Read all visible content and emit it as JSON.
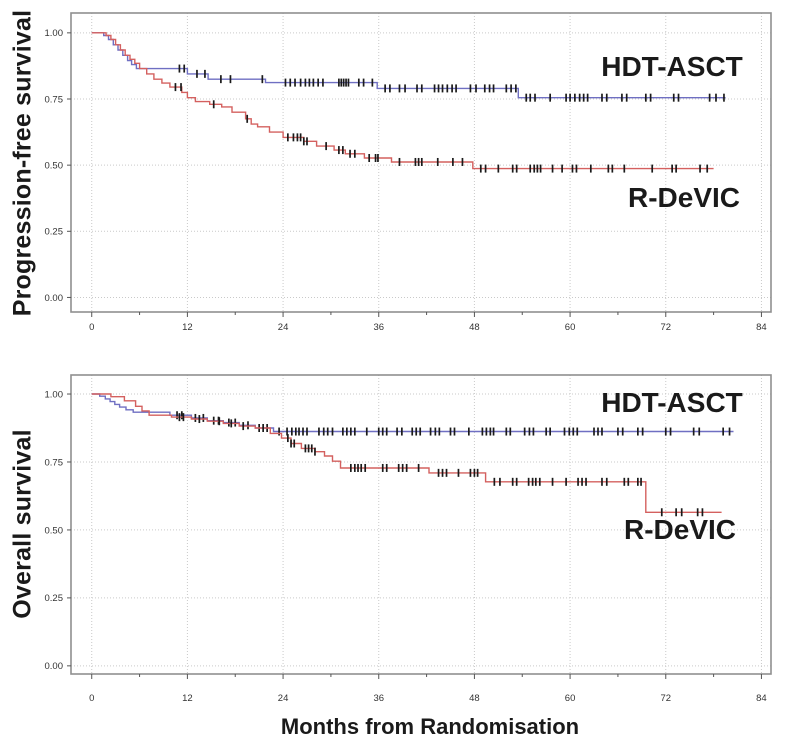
{
  "figure": {
    "background_color": "#ffffff",
    "grid_color": "#c9c9c9",
    "box_color": "#8f8f8f",
    "censor_color": "#1a1a1a",
    "tick_label_color": "#333333"
  },
  "chart_data": [
    {
      "type": "line",
      "subtype": "kaplan-meier-step",
      "title": "",
      "ylabel": "Progression-free survival",
      "xlabel": "",
      "xlim": [
        -2.6,
        85.2
      ],
      "ylim": [
        -0.055,
        1.075
      ],
      "xticks": [
        0,
        12,
        24,
        36,
        48,
        60,
        72,
        84
      ],
      "xminor": [
        6,
        18,
        30,
        42,
        54,
        66,
        78
      ],
      "yticks": [
        0.0,
        0.25,
        0.5,
        0.75,
        1.0
      ],
      "ytick_labels": [
        "0.00",
        "0.25",
        "0.50",
        "0.75",
        "1.00"
      ],
      "grid": true,
      "legend_position": "annotations-on-plot",
      "series": [
        {
          "name": "HDT-ASCT",
          "color": "#6f6fc2",
          "end_x": 79.5,
          "steps": [
            [
              0,
              1.0
            ],
            [
              1.5,
              0.99
            ],
            [
              2.1,
              0.975
            ],
            [
              2.7,
              0.955
            ],
            [
              3.3,
              0.935
            ],
            [
              3.9,
              0.915
            ],
            [
              4.5,
              0.895
            ],
            [
              5.0,
              0.88
            ],
            [
              5.6,
              0.865
            ],
            [
              12.0,
              0.845
            ],
            [
              14.6,
              0.825
            ],
            [
              21.8,
              0.812
            ],
            [
              35.8,
              0.79
            ],
            [
              53.5,
              0.755
            ]
          ],
          "censor_x": [
            11,
            11.6,
            13.2,
            14.2,
            16.2,
            17.4,
            21.4,
            24.3,
            24.9,
            25.5,
            26.2,
            26.8,
            27.3,
            27.8,
            28.4,
            29,
            31,
            31.3,
            31.6,
            31.9,
            32.2,
            33.5,
            34.1,
            35.2,
            36.8,
            37.4,
            38.6,
            39.3,
            40.8,
            41.4,
            43,
            43.5,
            44,
            44.6,
            45.2,
            45.7,
            47.5,
            48.2,
            49.3,
            49.9,
            50.4,
            52,
            52.6,
            53.2,
            54.5,
            55,
            55.6,
            57.5,
            59.5,
            60,
            60.6,
            61.2,
            61.7,
            62.2,
            64,
            64.6,
            66.5,
            67.1,
            69.5,
            70.1,
            73,
            73.6,
            77.5,
            78.3,
            79.3
          ]
        },
        {
          "name": "R-DeVIC",
          "color": "#d4605f",
          "end_x": 78,
          "steps": [
            [
              0,
              1.0
            ],
            [
              1.8,
              0.99
            ],
            [
              2.4,
              0.975
            ],
            [
              3.0,
              0.955
            ],
            [
              3.6,
              0.935
            ],
            [
              4.2,
              0.915
            ],
            [
              4.8,
              0.9
            ],
            [
              5.4,
              0.885
            ],
            [
              6.0,
              0.865
            ],
            [
              6.9,
              0.845
            ],
            [
              7.8,
              0.825
            ],
            [
              8.8,
              0.81
            ],
            [
              9.8,
              0.795
            ],
            [
              11.3,
              0.775
            ],
            [
              12.0,
              0.755
            ],
            [
              13.0,
              0.74
            ],
            [
              14.8,
              0.73
            ],
            [
              16.3,
              0.72
            ],
            [
              17.6,
              0.7
            ],
            [
              19.3,
              0.675
            ],
            [
              20.0,
              0.655
            ],
            [
              20.8,
              0.645
            ],
            [
              22.3,
              0.625
            ],
            [
              24.0,
              0.605
            ],
            [
              26.6,
              0.59
            ],
            [
              28.2,
              0.572
            ],
            [
              30.4,
              0.557
            ],
            [
              31.8,
              0.543
            ],
            [
              34.2,
              0.527
            ],
            [
              37.6,
              0.512
            ],
            [
              47.8,
              0.487
            ]
          ],
          "censor_x": [
            10.5,
            11.2,
            15.3,
            19.5,
            24.6,
            25.3,
            25.8,
            26.2,
            26.6,
            27,
            29.4,
            31,
            31.5,
            32.4,
            33,
            34.8,
            35.6,
            35.9,
            38.6,
            40.6,
            41,
            41.4,
            43.4,
            45.3,
            46.5,
            48.8,
            49.4,
            51,
            52.8,
            53.3,
            55,
            55.5,
            55.9,
            56.3,
            57.8,
            59,
            60.3,
            60.8,
            62.6,
            64.8,
            65.3,
            66.8,
            70.3,
            72.8,
            73.3,
            76.3,
            77.2
          ]
        }
      ],
      "annotations": [
        {
          "text": "HDT-ASCT",
          "x": 72.8,
          "y": 0.875
        },
        {
          "text": "R-DeVIC",
          "x": 74.3,
          "y": 0.377
        }
      ]
    },
    {
      "type": "line",
      "subtype": "kaplan-meier-step",
      "title": "",
      "ylabel": "Overall survival",
      "xlabel": "Months from Randomisation",
      "xlim": [
        -2.6,
        85.2
      ],
      "ylim": [
        -0.03,
        1.07
      ],
      "xticks": [
        0,
        12,
        24,
        36,
        48,
        60,
        72,
        84
      ],
      "xminor": [
        6,
        18,
        30,
        42,
        54,
        66,
        78
      ],
      "yticks": [
        0.0,
        0.25,
        0.5,
        0.75,
        1.0
      ],
      "ytick_labels": [
        "0.00",
        "0.25",
        "0.50",
        "0.75",
        "1.00"
      ],
      "grid": true,
      "legend_position": "annotations-on-plot",
      "series": [
        {
          "name": "HDT-ASCT",
          "color": "#6f6fc2",
          "end_x": 80.5,
          "steps": [
            [
              0,
              1.0
            ],
            [
              1.0,
              0.992
            ],
            [
              1.7,
              0.982
            ],
            [
              2.3,
              0.972
            ],
            [
              2.9,
              0.962
            ],
            [
              3.5,
              0.952
            ],
            [
              4.3,
              0.942
            ],
            [
              5.2,
              0.933
            ],
            [
              9.8,
              0.922
            ],
            [
              12.5,
              0.912
            ],
            [
              14.5,
              0.902
            ],
            [
              16.5,
              0.895
            ],
            [
              18.5,
              0.885
            ],
            [
              20.5,
              0.875
            ],
            [
              22.8,
              0.862
            ]
          ],
          "censor_x": [
            10.7,
            11.3,
            13,
            14,
            15.3,
            15.9,
            17.2,
            18,
            19.6,
            21,
            22,
            23.5,
            24.5,
            25.1,
            25.6,
            26,
            26.5,
            27,
            28.5,
            29.1,
            29.6,
            30.2,
            31.5,
            32,
            32.5,
            33,
            34.5,
            36,
            36.5,
            37,
            38.3,
            38.9,
            40.2,
            40.7,
            41.2,
            42.5,
            43.1,
            43.6,
            45,
            45.5,
            47.3,
            49,
            49.5,
            50,
            50.4,
            52,
            52.5,
            54.3,
            54.9,
            55.4,
            57,
            57.5,
            59.3,
            59.9,
            60.4,
            60.9,
            63,
            63.5,
            64,
            66,
            66.6,
            68.5,
            69.1,
            72,
            72.6,
            75.5,
            76.2,
            79.2,
            80
          ]
        },
        {
          "name": "R-DeVIC",
          "color": "#d4605f",
          "end_x": 79,
          "steps": [
            [
              0,
              1.0
            ],
            [
              2.4,
              0.99
            ],
            [
              4.1,
              0.975
            ],
            [
              5.5,
              0.955
            ],
            [
              6.3,
              0.938
            ],
            [
              7.2,
              0.922
            ],
            [
              10.0,
              0.915
            ],
            [
              12.5,
              0.908
            ],
            [
              14.5,
              0.9
            ],
            [
              16.5,
              0.892
            ],
            [
              18.5,
              0.882
            ],
            [
              20.5,
              0.875
            ],
            [
              22.4,
              0.855
            ],
            [
              23.8,
              0.838
            ],
            [
              25.0,
              0.818
            ],
            [
              26.3,
              0.8
            ],
            [
              28.0,
              0.788
            ],
            [
              29.2,
              0.772
            ],
            [
              30.2,
              0.753
            ],
            [
              31.2,
              0.728
            ],
            [
              42.3,
              0.71
            ],
            [
              49.4,
              0.677
            ],
            [
              69.5,
              0.565
            ]
          ],
          "censor_x": [
            11,
            11.5,
            13.5,
            16,
            17.5,
            19,
            21.5,
            24.6,
            25,
            25.4,
            26.8,
            27.2,
            27.6,
            28,
            32.5,
            33,
            33.4,
            33.8,
            34.3,
            36.5,
            37,
            38.5,
            39,
            39.5,
            41,
            43.5,
            44,
            44.5,
            46,
            47.5,
            48,
            48.4,
            50.5,
            51.2,
            52.8,
            53.3,
            54.8,
            55.3,
            55.7,
            56.2,
            57.8,
            59.5,
            61,
            61.5,
            62,
            64,
            64.6,
            66.8,
            67.3,
            68.5,
            68.9,
            71.5,
            73.3,
            74,
            76,
            76.6
          ]
        }
      ],
      "annotations": [
        {
          "text": "HDT-ASCT",
          "x": 72.9,
          "y": 0.96
        },
        {
          "text": "R-DeVIC",
          "x": 73.8,
          "y": 0.49
        }
      ]
    }
  ]
}
